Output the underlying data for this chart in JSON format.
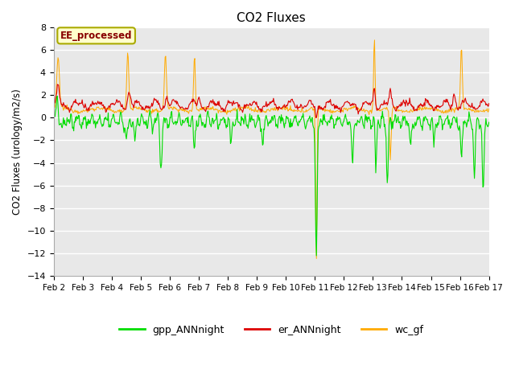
{
  "title": "CO2 Fluxes",
  "ylabel": "CO2 Fluxes (urology/m2/s)",
  "ylim": [
    -14,
    8
  ],
  "yticks": [
    -14,
    -12,
    -10,
    -8,
    -6,
    -4,
    -2,
    0,
    2,
    4,
    6,
    8
  ],
  "date_labels": [
    "Feb 2",
    "Feb 3",
    "Feb 4",
    "Feb 5",
    "Feb 6",
    "Feb 7",
    "Feb 8",
    "Feb 9",
    "Feb 10",
    "Feb 11",
    "Feb 12",
    "Feb 13",
    "Feb 14",
    "Feb 15",
    "Feb 16",
    "Feb 17"
  ],
  "n_points": 720,
  "colors": {
    "gpp": "#00dd00",
    "er": "#dd0000",
    "wc": "#ffaa00",
    "background": "#e8e8e8",
    "grid": "#ffffff",
    "annotation_bg": "#ffffcc",
    "annotation_border": "#aaaa00",
    "annotation_text": "#880000"
  },
  "legend_labels": [
    "gpp_ANNnight",
    "er_ANNnight",
    "wc_gf"
  ],
  "annotation_text": "EE_processed",
  "figsize": [
    6.4,
    4.8
  ],
  "dpi": 100
}
